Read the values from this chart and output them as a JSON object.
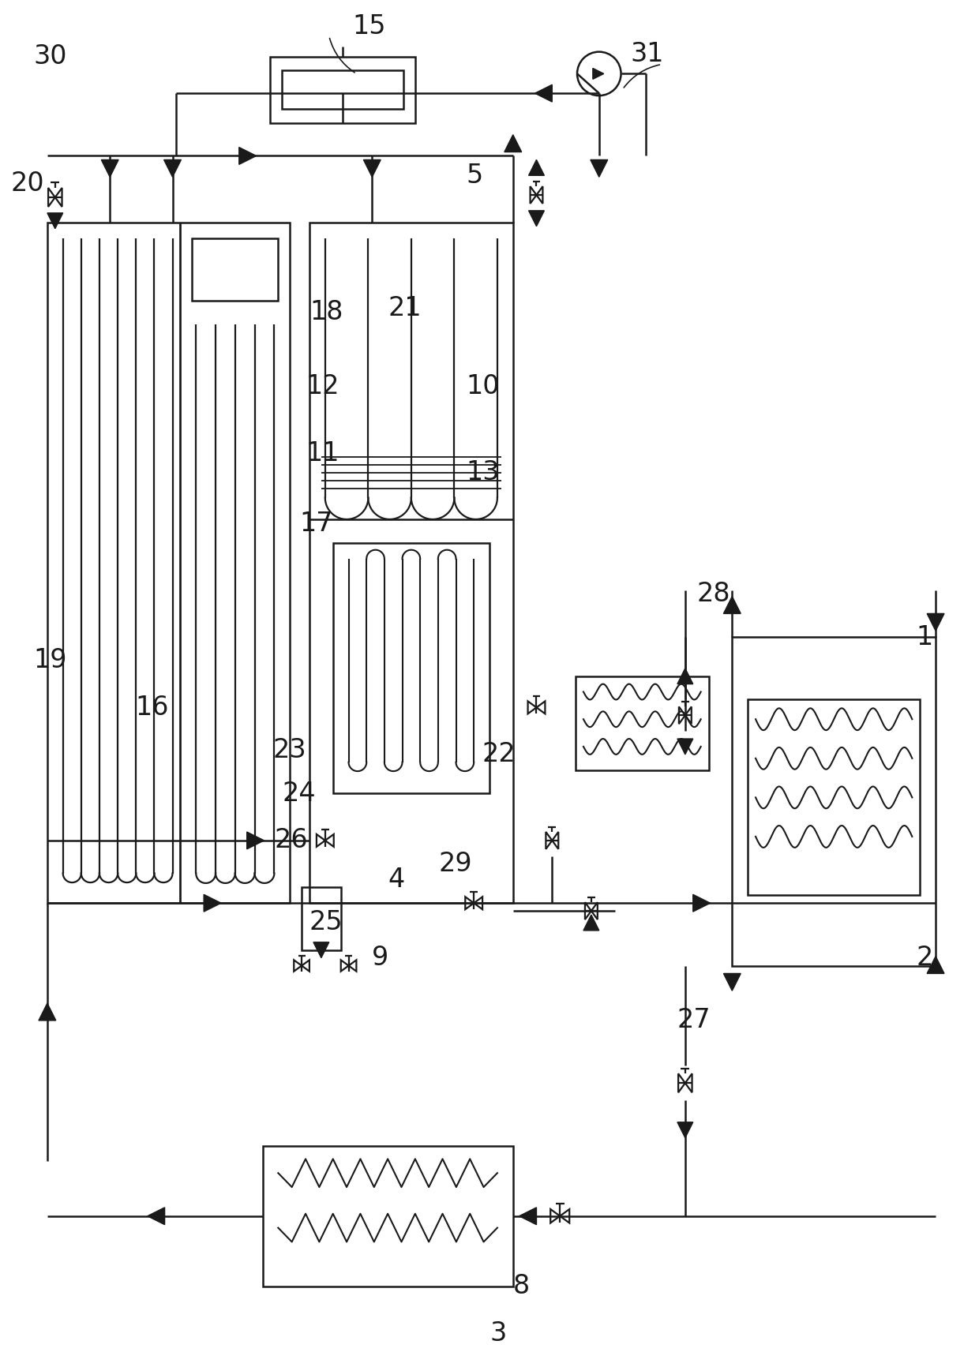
{
  "bg_color": "#ffffff",
  "lc": "#1a1a1a",
  "lw": 1.8,
  "fig_width": 12.4,
  "fig_height": 17.13,
  "dpi": 100
}
